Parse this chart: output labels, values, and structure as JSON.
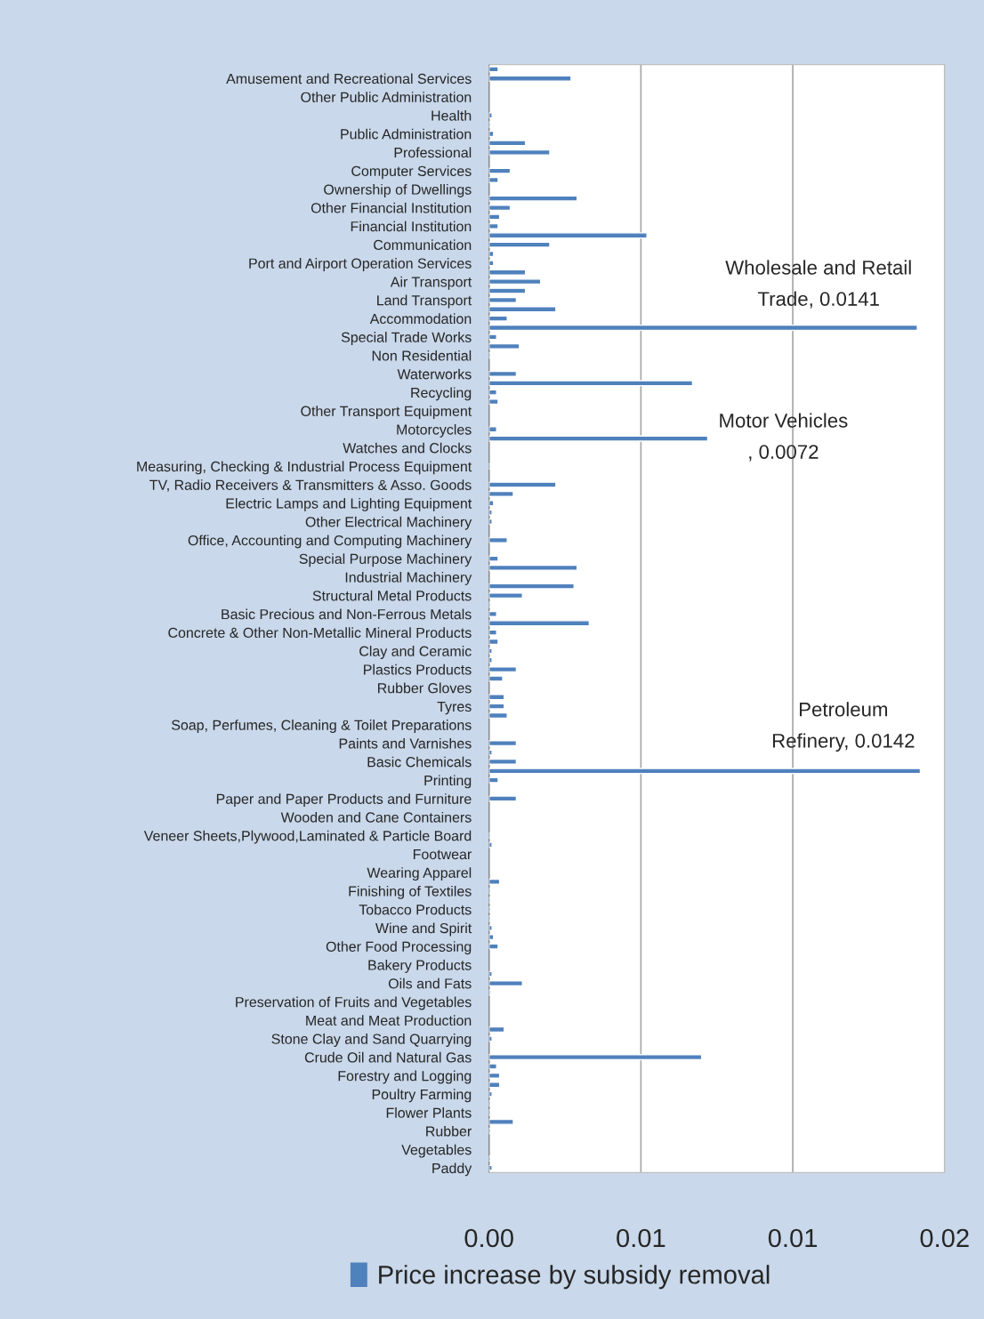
{
  "chart_data": {
    "type": "bar",
    "orientation": "horizontal",
    "categories": [
      null,
      "Amusement and Recreational Services",
      null,
      "Other Public Administration",
      null,
      "Health",
      null,
      "Public Administration",
      null,
      "Professional",
      null,
      "Computer Services",
      null,
      "Ownership of Dwellings",
      null,
      "Other Financial Institution",
      null,
      "Financial Institution",
      null,
      "Communication",
      null,
      "Port and Airport Operation Services",
      null,
      "Air Transport",
      null,
      "Land Transport",
      null,
      "Accommodation",
      null,
      "Special Trade Works",
      null,
      "Non Residential",
      null,
      "Waterworks",
      null,
      "Recycling",
      null,
      "Other Transport Equipment",
      null,
      "Motorcycles",
      null,
      "Watches and Clocks",
      null,
      "Measuring, Checking & Industrial Process Equipment",
      null,
      "TV, Radio Receivers & Transmitters & Asso. Goods",
      null,
      "Electric Lamps and Lighting Equipment",
      null,
      "Other Electrical Machinery",
      null,
      "Office, Accounting and Computing Machinery",
      null,
      "Special Purpose Machinery",
      null,
      "Industrial Machinery",
      null,
      "Structural Metal Products",
      null,
      "Basic Precious and Non-Ferrous Metals",
      null,
      "Concrete & Other Non-Metallic Mineral Products",
      null,
      "Clay and Ceramic",
      null,
      "Plastics Products",
      null,
      "Rubber Gloves",
      null,
      "Tyres",
      null,
      "Soap, Perfumes, Cleaning & Toilet Preparations",
      null,
      "Paints and Varnishes",
      null,
      "Basic Chemicals",
      null,
      "Printing",
      null,
      "Paper and Paper Products and Furniture",
      null,
      "Wooden and Cane Containers",
      null,
      "Veneer Sheets,Plywood,Laminated & Particle Board",
      null,
      "Footwear",
      null,
      "Wearing Apparel",
      null,
      "Finishing of Textiles",
      null,
      "Tobacco Products",
      null,
      "Wine and Spirit",
      null,
      "Other Food Processing",
      null,
      "Bakery Products",
      null,
      "Oils and Fats",
      null,
      "Preservation of Fruits and Vegetables",
      null,
      "Meat and Meat Production",
      null,
      "Stone Clay and Sand Quarrying",
      null,
      "Crude Oil and Natural Gas",
      null,
      "Forestry and Logging",
      null,
      "Poultry Farming",
      null,
      "Flower Plants",
      null,
      "Rubber",
      null,
      "Vegetables",
      null,
      "Paddy"
    ],
    "series": [
      {
        "name": "Price increase by subsidy removal",
        "color": "#4f81bd",
        "values": [
          0.0003,
          0.0027,
          0,
          0,
          0,
          0.0001,
          5e-05,
          0.00015,
          0.0012,
          0.002,
          0,
          0.0007,
          0.0003,
          0,
          0.0029,
          0.0007,
          0.00035,
          0.0003,
          0.0052,
          0.002,
          0.00015,
          0.00015,
          0.0012,
          0.0017,
          0.0012,
          0.0009,
          0.0022,
          0.0006,
          0.0141,
          0.00025,
          0.001,
          5e-05,
          0,
          0.0009,
          0.0067,
          0.00025,
          0.0003,
          0,
          0,
          0.00025,
          0.0072,
          0,
          0,
          5e-05,
          0,
          0.0022,
          0.0008,
          0.00015,
          0.0001,
          0.0001,
          0,
          0.0006,
          0,
          0.0003,
          0.0029,
          0,
          0.0028,
          0.0011,
          5e-05,
          0.00025,
          0.0033,
          0.00025,
          0.0003,
          0.0001,
          0.0001,
          0.0009,
          0.00045,
          0,
          0.0005,
          0.0005,
          0.0006,
          0,
          0,
          0.0009,
          0.0001,
          0.0009,
          0.0142,
          0.0003,
          0,
          0.0009,
          0,
          0,
          0,
          5e-05,
          0.0001,
          0,
          0,
          0,
          0.00035,
          5e-05,
          5e-05,
          5e-05,
          5e-05,
          0.0001,
          0.00015,
          0.0003,
          0,
          0,
          0.0001,
          0.0011,
          5e-05,
          0,
          0,
          0,
          0.0005,
          0.0001,
          0,
          0.007,
          0.00025,
          0.00035,
          0.00035,
          0.0001,
          5e-05,
          5e-05,
          0.0008,
          5e-05,
          0,
          0,
          5e-05,
          0.0001
        ]
      }
    ],
    "xlim": [
      0,
      0.015
    ],
    "xticks": [
      {
        "value": 0,
        "label": "0.00"
      },
      {
        "value": 0.005,
        "label": "0.01"
      },
      {
        "value": 0.01,
        "label": "0.01"
      },
      {
        "value": 0.015,
        "label": "0.02"
      }
    ],
    "grid": "x",
    "legend": "bottom",
    "annotations": [
      "Wholesale and Retail\nTrade, 0.0141",
      "Motor Vehicles\n, 0.0072",
      "Petroleum\nRefinery, 0.0142"
    ]
  }
}
